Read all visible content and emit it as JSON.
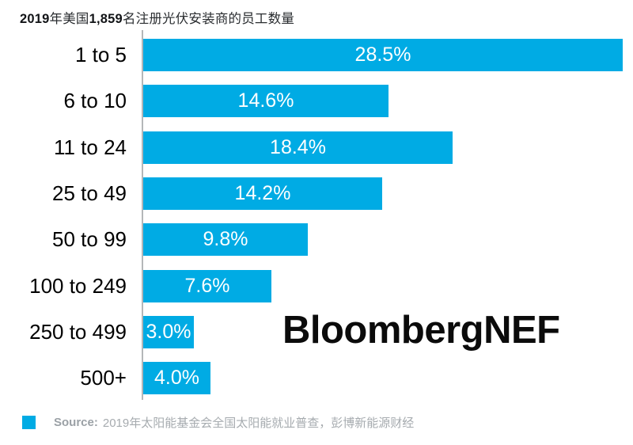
{
  "title": {
    "parts": [
      {
        "text": "2019",
        "bold": true
      },
      {
        "text": "年美国",
        "bold": false
      },
      {
        "text": "1,859",
        "bold": true
      },
      {
        "text": "名注册光伏安装商的员工数量",
        "bold": false
      }
    ]
  },
  "watermark": "BloombergNEF",
  "source": {
    "label": "Source:",
    "text": "2019年太阳能基金会全国太阳能就业普查，彭博新能源财经"
  },
  "colors": {
    "bar": "#00abe4",
    "axis": "#b4b7b9",
    "source_text": "#a6abaf",
    "source_label": "#9ba1a6",
    "value_text": "#ffffff",
    "category_text": "#000000",
    "watermark_text": "#0b0b0b"
  },
  "chart_data": {
    "type": "bar",
    "orientation": "horizontal",
    "title": "2019年美国1,859名注册光伏安装商的员工数量",
    "categories": [
      "1 to 5",
      "6 to 10",
      "11 to 24",
      "25 to 49",
      "50 to 99",
      "100 to 249",
      "250 to 499",
      "500+"
    ],
    "values": [
      28.5,
      14.6,
      18.4,
      14.2,
      9.8,
      7.6,
      3.0,
      4.0
    ],
    "value_labels": [
      "28.5%",
      "14.6%",
      "18.4%",
      "14.2%",
      "9.8%",
      "7.6%",
      "3.0%",
      "4.0%"
    ],
    "xlabel": "",
    "ylabel": "",
    "xlim": [
      0,
      28.5
    ],
    "grid": false,
    "legend": false,
    "value_label_position": "center-inside",
    "source_note": "Source: 2019年太阳能基金会全国太阳能就业普查，彭博新能源财经"
  }
}
